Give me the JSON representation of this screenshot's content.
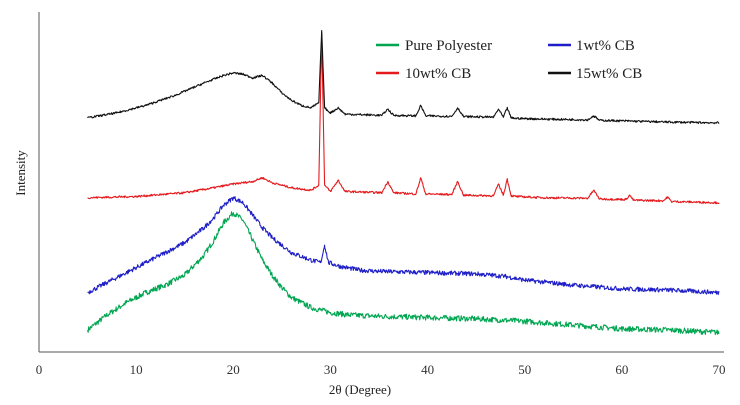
{
  "chart_data": {
    "type": "line",
    "xlabel": "2θ (Degree)",
    "ylabel": "Intensity",
    "xlim": [
      0,
      70
    ],
    "x_ticks": [
      "0",
      "10",
      "20",
      "30",
      "40",
      "50",
      "60",
      "70"
    ],
    "grid": false,
    "legend_position": "top-right",
    "series": [
      {
        "name": "Pure Polyester",
        "color": "#00a651",
        "x": [
          5,
          7,
          9,
          11,
          13,
          15,
          17,
          18,
          19,
          20,
          21,
          22,
          23,
          24,
          25,
          26,
          28,
          30,
          32,
          35,
          40,
          45,
          50,
          55,
          60,
          65,
          70
        ],
        "y": [
          4,
          10,
          15,
          19,
          22,
          26,
          34,
          40,
          47,
          51,
          48,
          40,
          32,
          26,
          21,
          17,
          13,
          11,
          10,
          9.5,
          9,
          8.5,
          7.5,
          6,
          4.5,
          4,
          3
        ]
      },
      {
        "name": "1wt% CB",
        "color": "#1f1fc8",
        "x": [
          5,
          7,
          9,
          11,
          13,
          15,
          17,
          18,
          19,
          20,
          21,
          22,
          23,
          24,
          25,
          26,
          28,
          29,
          29.4,
          29.8,
          31,
          33,
          35,
          40,
          45,
          48,
          50,
          55,
          60,
          65,
          70
        ],
        "y": [
          19,
          23,
          27,
          31,
          35,
          39,
          45,
          49,
          54,
          57,
          55,
          50,
          45,
          41,
          38,
          35,
          32,
          31,
          38,
          31,
          29.5,
          28,
          27.5,
          27,
          26.5,
          25.5,
          24,
          22,
          20.5,
          20,
          19
        ]
      },
      {
        "name": "10wt% CB",
        "color": "#e41a1c",
        "x": [
          5,
          10,
          15,
          18,
          20,
          21,
          22,
          23,
          24,
          25,
          26,
          28,
          28.8,
          29.1,
          29.4,
          30,
          30.8,
          31.5,
          35.3,
          35.9,
          36.5,
          38.8,
          39.3,
          39.8,
          42.5,
          43.1,
          43.7,
          46.8,
          47.3,
          47.8,
          48.2,
          48.6,
          49.1,
          52,
          56.5,
          57.1,
          57.7,
          60.4,
          60.8,
          61.2,
          64.3,
          64.7,
          65.1,
          70
        ],
        "y": [
          57,
          57.5,
          59,
          61,
          62.5,
          63,
          63.5,
          65,
          63,
          62,
          61,
          60,
          62,
          123,
          62,
          59.5,
          64,
          59.5,
          59,
          63.5,
          59,
          58.5,
          65,
          58.5,
          58.3,
          63.5,
          58,
          57.8,
          62.5,
          58,
          64.5,
          57.8,
          57.5,
          57,
          56.8,
          60,
          56.5,
          56.3,
          58,
          56,
          55.8,
          57.3,
          55.5,
          55
        ]
      },
      {
        "name": "15wt% CB",
        "color": "#111111",
        "x": [
          5,
          8,
          11,
          14,
          17,
          19,
          20,
          21,
          22,
          23,
          24,
          25,
          26,
          27,
          28,
          28.8,
          29.1,
          29.4,
          30,
          30.8,
          31.5,
          35.3,
          35.9,
          36.5,
          38.8,
          39.3,
          39.8,
          42.5,
          43.1,
          43.7,
          46.8,
          47.3,
          47.8,
          48.2,
          48.6,
          49.1,
          52,
          56.5,
          57.1,
          57.7,
          60,
          63,
          65,
          70
        ],
        "y": [
          89,
          91,
          94,
          98,
          103,
          106,
          107,
          106.5,
          105,
          106,
          103,
          99,
          96,
          94,
          93,
          95,
          124,
          93,
          91,
          93,
          90.5,
          90,
          92.5,
          90,
          89.8,
          94,
          89.8,
          89.6,
          93,
          89.5,
          89.3,
          92.5,
          89.2,
          93,
          89,
          88.8,
          88.5,
          88.2,
          89.8,
          88,
          87.8,
          87.5,
          87.3,
          87
        ]
      }
    ]
  }
}
